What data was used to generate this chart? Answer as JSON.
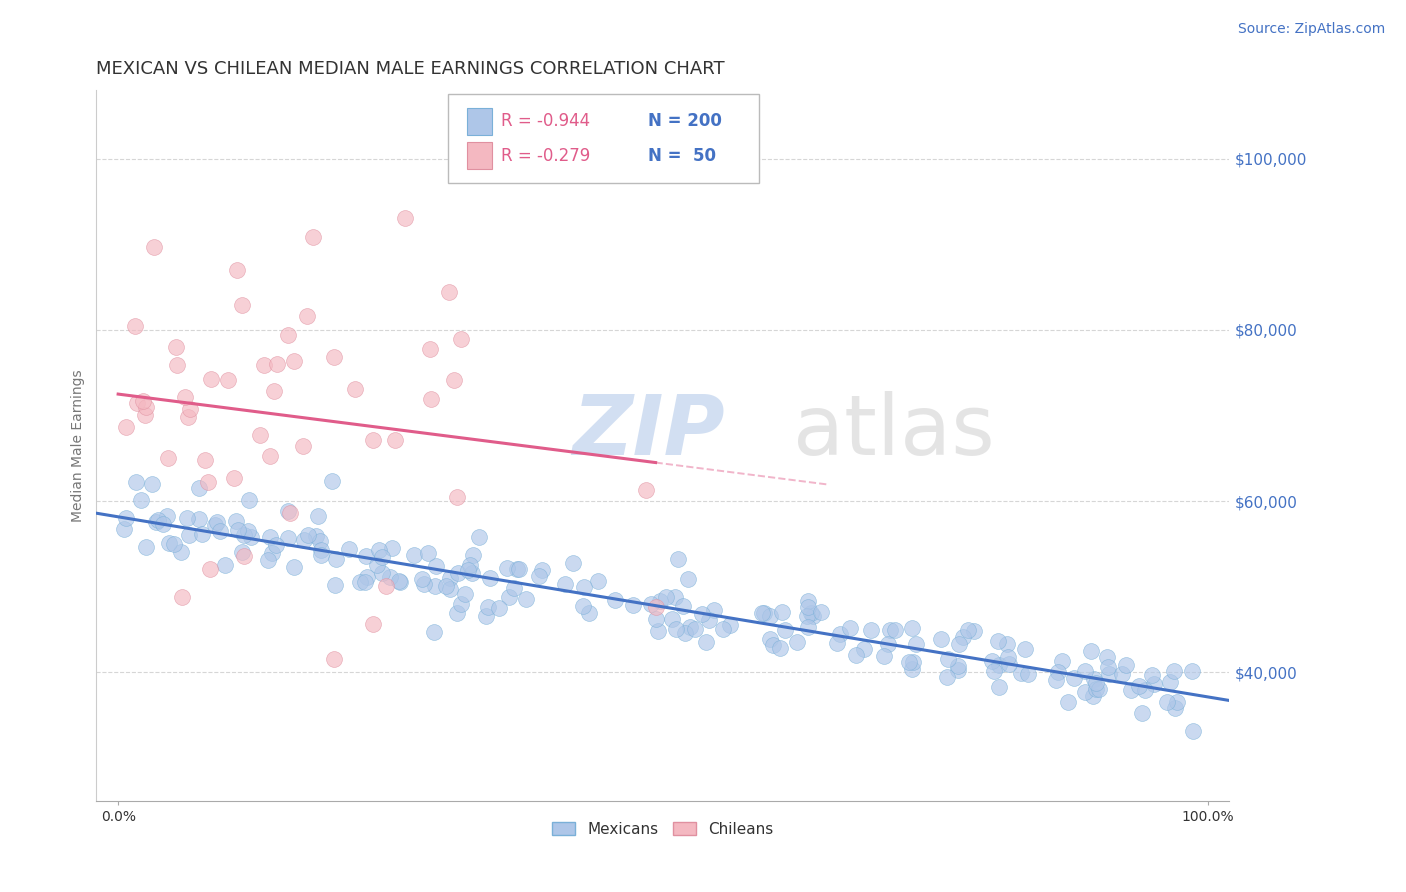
{
  "title": "MEXICAN VS CHILEAN MEDIAN MALE EARNINGS CORRELATION CHART",
  "source_text": "Source: ZipAtlas.com",
  "ylabel": "Median Male Earnings",
  "legend_labels": [
    "Mexicans",
    "Chileans"
  ],
  "r_mexican": -0.944,
  "n_mexican": 200,
  "r_chilean": -0.279,
  "n_chilean": 50,
  "xlim": [
    -0.02,
    1.02
  ],
  "ylim": [
    25000,
    108000
  ],
  "xtick_positions": [
    0.0,
    1.0
  ],
  "xticklabels": [
    "0.0%",
    "100.0%"
  ],
  "ytick_positions": [
    40000,
    60000,
    80000,
    100000
  ],
  "ytick_labels": [
    "$40,000",
    "$60,000",
    "$80,000",
    "$100,000"
  ],
  "dot_color_mexican": "#aec6e8",
  "dot_color_chilean": "#f4b8c1",
  "line_color_mexican": "#4472c4",
  "line_color_chilean": "#e05c8a",
  "watermark": "ZIPatlas",
  "watermark_color_zip": "#aec6e8",
  "watermark_color_atlas": "#888888",
  "title_color": "#333333",
  "title_fontsize": 13,
  "source_color": "#4472c4",
  "source_fontsize": 10,
  "axis_label_color": "#777777",
  "tick_color_y": "#4472c4",
  "dot_size": 130,
  "dot_alpha": 0.65,
  "dot_edgecolor_mexican": "#7ab0d8",
  "dot_edgecolor_chilean": "#e090a0",
  "dot_edgewidth": 0.5,
  "legend_sq_color_mex": "#aec6e8",
  "legend_sq_color_chi": "#f4b8c1",
  "legend_sq_edge_mex": "#7ab0d8",
  "legend_sq_edge_chi": "#e090a0"
}
